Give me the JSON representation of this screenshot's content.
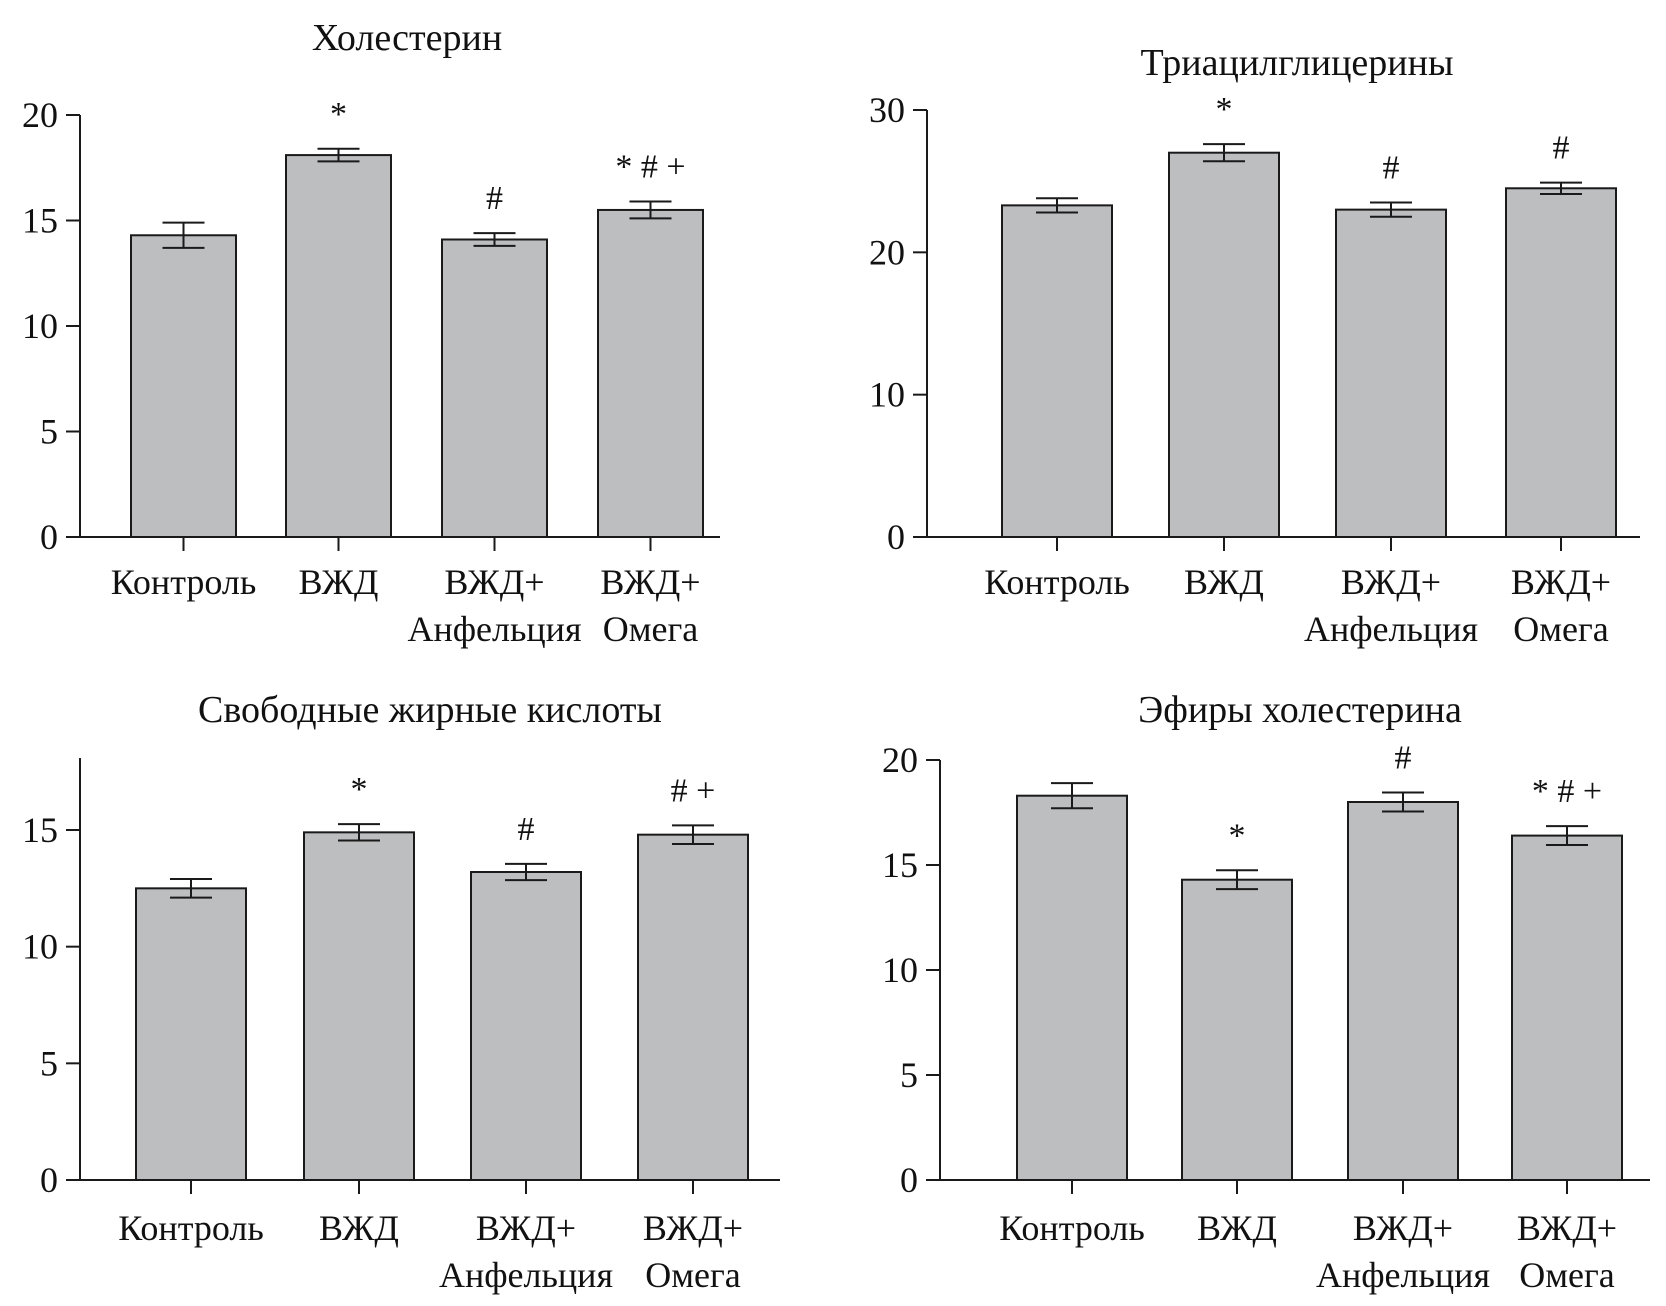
{
  "chart_data": [
    {
      "type": "bar",
      "title": "Холестерин",
      "categories": [
        {
          "lines": [
            "Контроль"
          ]
        },
        {
          "lines": [
            "ВЖД"
          ]
        },
        {
          "lines": [
            "ВЖД+",
            "Анфельция"
          ]
        },
        {
          "lines": [
            "ВЖД+",
            "Омега"
          ]
        }
      ],
      "values": [
        14.3,
        18.1,
        14.1,
        15.5
      ],
      "errors": [
        0.6,
        0.3,
        0.3,
        0.4
      ],
      "annotations": [
        "",
        "*",
        "#",
        "* # +"
      ],
      "ylim": [
        0,
        20
      ],
      "yticks": [
        0,
        5,
        10,
        15,
        20
      ],
      "xlabel": "",
      "ylabel": ""
    },
    {
      "type": "bar",
      "title": "Триацилглицерины",
      "categories": [
        {
          "lines": [
            "Контроль"
          ]
        },
        {
          "lines": [
            "ВЖД"
          ]
        },
        {
          "lines": [
            "ВЖД+",
            "Анфельция"
          ]
        },
        {
          "lines": [
            "ВЖД+",
            "Омега"
          ]
        }
      ],
      "values": [
        23.3,
        27.0,
        23.0,
        24.5
      ],
      "errors": [
        0.5,
        0.6,
        0.5,
        0.4
      ],
      "annotations": [
        "",
        "*",
        "#",
        "#"
      ],
      "ylim": [
        0,
        30
      ],
      "yticks": [
        0,
        10,
        20,
        30
      ],
      "xlabel": "",
      "ylabel": ""
    },
    {
      "type": "bar",
      "title": "Свободные жирные кислоты",
      "categories": [
        {
          "lines": [
            "Контроль"
          ]
        },
        {
          "lines": [
            "ВЖД"
          ]
        },
        {
          "lines": [
            "ВЖД+",
            "Анфельция"
          ]
        },
        {
          "lines": [
            "ВЖД+",
            "Омега"
          ]
        }
      ],
      "values": [
        12.5,
        14.9,
        13.2,
        14.8
      ],
      "errors": [
        0.4,
        0.35,
        0.35,
        0.4
      ],
      "annotations": [
        "",
        "*",
        "#",
        "# +"
      ],
      "ylim": [
        0,
        18
      ],
      "yticks": [
        0,
        5,
        10,
        15
      ],
      "xlabel": "",
      "ylabel": ""
    },
    {
      "type": "bar",
      "title": "Эфиры холестерина",
      "categories": [
        {
          "lines": [
            "Контроль"
          ]
        },
        {
          "lines": [
            "ВЖД"
          ]
        },
        {
          "lines": [
            "ВЖД+",
            "Анфельция"
          ]
        },
        {
          "lines": [
            "ВЖД+",
            "Омега"
          ]
        }
      ],
      "values": [
        18.3,
        14.3,
        18.0,
        16.4
      ],
      "errors": [
        0.6,
        0.45,
        0.45,
        0.45
      ],
      "annotations": [
        "",
        "*",
        "#",
        "* # +"
      ],
      "ylim": [
        0,
        20
      ],
      "yticks": [
        0,
        5,
        10,
        15,
        20
      ],
      "xlabel": "",
      "ylabel": ""
    }
  ]
}
